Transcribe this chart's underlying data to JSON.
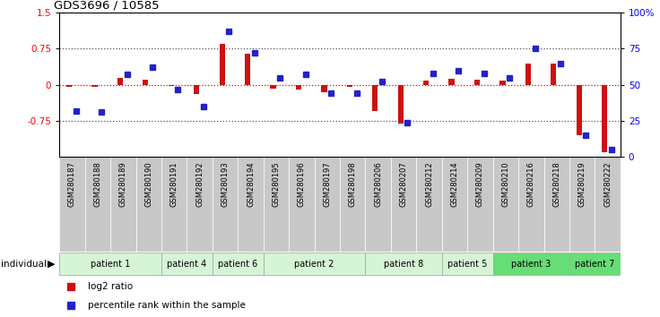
{
  "title": "GDS3696 / 10585",
  "samples": [
    "GSM280187",
    "GSM280188",
    "GSM280189",
    "GSM280190",
    "GSM280191",
    "GSM280192",
    "GSM280193",
    "GSM280194",
    "GSM280195",
    "GSM280196",
    "GSM280197",
    "GSM280198",
    "GSM280206",
    "GSM280207",
    "GSM280212",
    "GSM280214",
    "GSM280209",
    "GSM280210",
    "GSM280216",
    "GSM280218",
    "GSM280219",
    "GSM280222"
  ],
  "log2_ratio": [
    -0.05,
    -0.05,
    0.15,
    0.1,
    -0.03,
    -0.2,
    0.85,
    0.65,
    -0.08,
    -0.1,
    -0.15,
    -0.05,
    -0.55,
    -0.8,
    0.08,
    0.12,
    0.1,
    0.08,
    0.45,
    0.45,
    -1.05,
    -1.4
  ],
  "percentile_rank": [
    32,
    31,
    57,
    62,
    47,
    35,
    87,
    72,
    55,
    57,
    44,
    44,
    52,
    24,
    58,
    60,
    58,
    55,
    75,
    65,
    15,
    5
  ],
  "patients": [
    {
      "label": "patient 1",
      "start": 0,
      "end": 4,
      "color": "#d6f5d6"
    },
    {
      "label": "patient 4",
      "start": 4,
      "end": 6,
      "color": "#d6f5d6"
    },
    {
      "label": "patient 6",
      "start": 6,
      "end": 8,
      "color": "#d6f5d6"
    },
    {
      "label": "patient 2",
      "start": 8,
      "end": 12,
      "color": "#d6f5d6"
    },
    {
      "label": "patient 8",
      "start": 12,
      "end": 15,
      "color": "#d6f5d6"
    },
    {
      "label": "patient 5",
      "start": 15,
      "end": 17,
      "color": "#d6f5d6"
    },
    {
      "label": "patient 3",
      "start": 17,
      "end": 20,
      "color": "#66dd77"
    },
    {
      "label": "patient 7",
      "start": 20,
      "end": 22,
      "color": "#66dd77"
    }
  ],
  "ylim_left": [
    -1.5,
    1.5
  ],
  "ylim_right": [
    0,
    100
  ],
  "bar_color_red": "#cc1111",
  "dot_color_blue": "#2222cc",
  "sample_bg": "#c8c8c8",
  "dotted_line_color": "#000000",
  "legend_red_label": "log2 ratio",
  "legend_blue_label": "percentile rank within the sample",
  "left_yticks": [
    -0.75,
    0,
    0.75,
    1.5
  ],
  "left_yticklabels": [
    "-0.75",
    "0",
    "0.75",
    "1.5"
  ],
  "right_yticks": [
    0,
    25,
    50,
    75,
    100
  ],
  "right_yticklabels": [
    "0",
    "25",
    "50",
    "75",
    "100%"
  ]
}
